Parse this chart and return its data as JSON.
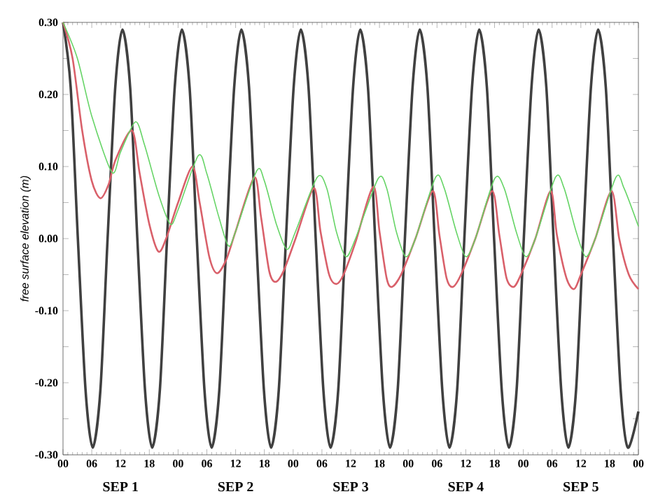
{
  "chart_data": {
    "type": "line",
    "ylabel": "free surface elevation (m)",
    "marker": "none",
    "line_style": "solid",
    "xlim": [
      0,
      120
    ],
    "ylim": [
      -0.3,
      0.3
    ],
    "xticks": [
      {
        "value": 0,
        "label": "00"
      },
      {
        "value": 6,
        "label": "06"
      },
      {
        "value": 12,
        "label": "12"
      },
      {
        "value": 18,
        "label": "18"
      },
      {
        "value": 24,
        "label": "00"
      },
      {
        "value": 30,
        "label": "06"
      },
      {
        "value": 36,
        "label": "12"
      },
      {
        "value": 42,
        "label": "18"
      },
      {
        "value": 48,
        "label": "00"
      },
      {
        "value": 54,
        "label": "06"
      },
      {
        "value": 60,
        "label": "12"
      },
      {
        "value": 66,
        "label": "18"
      },
      {
        "value": 72,
        "label": "00"
      },
      {
        "value": 78,
        "label": "06"
      },
      {
        "value": 84,
        "label": "12"
      },
      {
        "value": 90,
        "label": "18"
      },
      {
        "value": 96,
        "label": "00"
      },
      {
        "value": 102,
        "label": "06"
      },
      {
        "value": 108,
        "label": "12"
      },
      {
        "value": 114,
        "label": "18"
      },
      {
        "value": 120,
        "label": "00"
      }
    ],
    "yticks": [
      {
        "value": -0.3,
        "label": "-0.30"
      },
      {
        "value": -0.25,
        "label": null
      },
      {
        "value": -0.2,
        "label": "-0.20"
      },
      {
        "value": -0.15,
        "label": null
      },
      {
        "value": -0.1,
        "label": "-0.10"
      },
      {
        "value": -0.05,
        "label": null
      },
      {
        "value": 0,
        "label": "0.00"
      },
      {
        "value": 0.05,
        "label": null
      },
      {
        "value": 0.1,
        "label": "0.10"
      },
      {
        "value": 0.15,
        "label": null
      },
      {
        "value": 0.2,
        "label": "0.20"
      },
      {
        "value": 0.25,
        "label": null
      },
      {
        "value": 0.3,
        "label": "0.30"
      }
    ],
    "annotations": [
      "SEP 1",
      "SEP 2",
      "SEP 3",
      "SEP 4",
      "SEP 5"
    ],
    "series": [
      {
        "color": "#404040",
        "x": [
          0,
          1.6,
          3.1,
          4.7,
          6.2,
          7.8,
          9.3,
          10.9,
          12.4,
          14.0,
          15.5,
          17.1,
          18.6,
          20.2,
          21.7,
          23.3,
          24.8,
          26.4,
          27.9,
          29.5,
          31.0,
          32.6,
          34.1,
          35.7,
          37.2,
          38.8,
          40.3,
          41.9,
          43.4,
          45.0,
          46.5,
          48.1,
          49.6,
          51.2,
          52.7,
          54.3,
          55.8,
          57.4,
          58.9,
          60.5,
          62.0,
          63.6,
          65.1,
          66.7,
          68.2,
          69.8,
          71.3,
          72.9,
          74.4,
          76.0,
          77.5,
          79.1,
          80.6,
          82.2,
          83.7,
          85.3,
          86.8,
          88.4,
          89.9,
          91.5,
          93.0,
          94.6,
          96.1,
          97.7,
          99.2,
          100.8,
          102.3,
          103.9,
          105.4,
          107.0,
          108.5,
          110.1,
          111.6,
          113.2,
          114.7,
          116.3,
          117.8,
          120
        ],
        "values": [
          0.3,
          0.21,
          0,
          -0.21,
          -0.29,
          -0.21,
          0,
          0.21,
          0.29,
          0.21,
          0,
          -0.21,
          -0.29,
          -0.21,
          0,
          0.21,
          0.29,
          0.21,
          0,
          -0.21,
          -0.29,
          -0.21,
          0,
          0.21,
          0.29,
          0.21,
          0,
          -0.21,
          -0.29,
          -0.21,
          0,
          0.21,
          0.29,
          0.21,
          0,
          -0.21,
          -0.29,
          -0.21,
          0,
          0.21,
          0.29,
          0.21,
          0,
          -0.21,
          -0.29,
          -0.21,
          0,
          0.21,
          0.29,
          0.21,
          0,
          -0.21,
          -0.29,
          -0.21,
          0,
          0.21,
          0.29,
          0.21,
          0,
          -0.21,
          -0.29,
          -0.21,
          0,
          0.21,
          0.29,
          0.21,
          0,
          -0.21,
          -0.29,
          -0.21,
          0,
          0.21,
          0.29,
          0.21,
          0,
          -0.21,
          -0.29,
          -0.24
        ]
      },
      {
        "color": "#d9606a",
        "x": [
          0,
          2,
          4,
          6,
          7.8,
          9.5,
          11,
          14.4,
          16,
          18,
          19.9,
          21.5,
          24,
          27,
          28.5,
          30.5,
          32.1,
          34,
          36,
          39.9,
          41.3,
          43,
          44.3,
          46,
          48.5,
          52.3,
          53.7,
          55.5,
          57,
          58.5,
          61,
          64.7,
          66,
          67.5,
          68.6,
          70.5,
          73.5,
          77.1,
          78.5,
          80,
          81.3,
          83,
          86,
          89.5,
          91,
          92.5,
          94,
          95.5,
          98.5,
          101.7,
          103,
          105,
          106.6,
          108,
          111,
          114.4,
          116,
          118,
          120
        ],
        "values": [
          0.3,
          0.25,
          0.15,
          0.08,
          0.056,
          0.075,
          0.11,
          0.15,
          0.09,
          0.02,
          -0.018,
          0.0,
          0.05,
          0.1,
          0.05,
          -0.025,
          -0.048,
          -0.03,
          0.01,
          0.085,
          0.03,
          -0.045,
          -0.06,
          -0.045,
          0.0,
          0.07,
          0.01,
          -0.05,
          -0.063,
          -0.05,
          -0.005,
          0.072,
          0.01,
          -0.055,
          -0.067,
          -0.05,
          0.0,
          0.066,
          0.005,
          -0.055,
          -0.067,
          -0.05,
          0.0,
          0.066,
          0.005,
          -0.055,
          -0.067,
          -0.05,
          0.0,
          0.066,
          0.005,
          -0.055,
          -0.07,
          -0.05,
          0.0,
          0.066,
          0.0,
          -0.05,
          -0.07
        ]
      },
      {
        "color": "#66d466",
        "x": [
          0,
          3,
          6,
          10.2,
          12,
          15.1,
          17,
          20,
          22.4,
          24,
          28.2,
          30,
          32.5,
          34.5,
          36,
          40.4,
          42,
          44.5,
          46.7,
          48.5,
          53,
          55,
          57,
          59,
          61,
          65.7,
          67.5,
          69.5,
          71.5,
          73.5,
          77.7,
          79.5,
          82,
          84,
          86,
          90,
          92,
          94.5,
          96.5,
          98.5,
          102.7,
          104.5,
          107,
          109,
          111,
          115.3,
          117,
          120
        ],
        "values": [
          0.3,
          0.25,
          0.17,
          0.092,
          0.12,
          0.162,
          0.13,
          0.06,
          0.02,
          0.04,
          0.115,
          0.09,
          0.03,
          -0.01,
          0.01,
          0.094,
          0.08,
          0.02,
          -0.015,
          0.01,
          0.085,
          0.07,
          0.01,
          -0.025,
          0.0,
          0.083,
          0.07,
          0.01,
          -0.025,
          0.0,
          0.085,
          0.07,
          0.01,
          -0.025,
          0.0,
          0.083,
          0.07,
          0.01,
          -0.025,
          0.0,
          0.085,
          0.07,
          0.01,
          -0.025,
          0.0,
          0.085,
          0.07,
          0.017
        ]
      }
    ]
  }
}
